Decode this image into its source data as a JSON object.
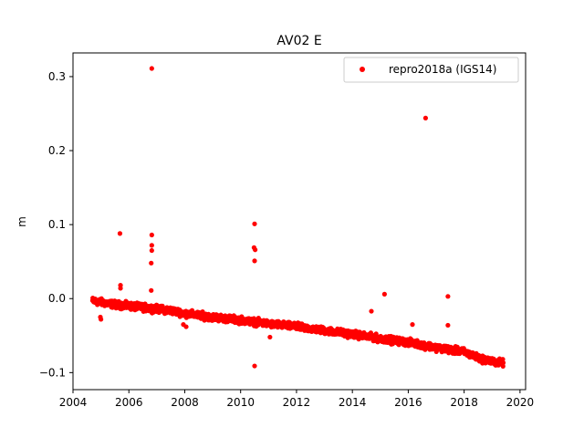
{
  "chart_data": {
    "type": "scatter",
    "title": "AV02 E",
    "xlabel": "",
    "ylabel": "m",
    "xlim": [
      2004.0,
      2020.2
    ],
    "ylim": [
      -0.123,
      0.332
    ],
    "xticks": [
      2004,
      2006,
      2008,
      2010,
      2012,
      2014,
      2016,
      2018,
      2020
    ],
    "xtick_labels": [
      "2004",
      "2006",
      "2008",
      "2010",
      "2012",
      "2014",
      "2016",
      "2018",
      "2020"
    ],
    "yticks": [
      -0.1,
      0.0,
      0.1,
      0.2,
      0.3
    ],
    "ytick_labels": [
      "−0.1",
      "0.0",
      "0.1",
      "0.2",
      "0.3"
    ],
    "legend_position": "top-right",
    "series": [
      {
        "name": "repro2018a (IGS14)",
        "color": "#ff0000",
        "marker": "circle",
        "trend": {
          "x": [
            2004.7,
            2005.5,
            2006.0,
            2006.8,
            2007.5,
            2008.0,
            2009.0,
            2010.0,
            2011.0,
            2012.0,
            2013.0,
            2014.0,
            2015.0,
            2016.0,
            2017.0,
            2018.0,
            2018.5,
            2019.0,
            2019.4
          ],
          "y": [
            -0.003,
            -0.008,
            -0.01,
            -0.013,
            -0.016,
            -0.02,
            -0.025,
            -0.029,
            -0.034,
            -0.038,
            -0.043,
            -0.048,
            -0.054,
            -0.059,
            -0.066,
            -0.072,
            -0.08,
            -0.085,
            -0.087
          ]
        },
        "outliers": {
          "x": [
            2006.82,
            2016.62,
            2005.68,
            2006.82,
            2006.82,
            2006.82,
            2006.8,
            2005.7,
            2005.7,
            2006.8,
            2010.5,
            2010.48,
            2010.52,
            2010.5,
            2010.5,
            2011.05,
            2015.15,
            2014.68,
            2016.15,
            2017.42,
            2017.42,
            2007.95,
            2008.05,
            2005.0,
            2004.98
          ],
          "y": [
            0.311,
            0.244,
            0.088,
            0.086,
            0.072,
            0.065,
            0.048,
            0.018,
            0.014,
            0.011,
            0.101,
            0.069,
            0.066,
            0.051,
            -0.091,
            -0.052,
            0.006,
            -0.017,
            -0.035,
            0.003,
            -0.036,
            -0.035,
            -0.038,
            -0.028,
            -0.025
          ]
        }
      }
    ]
  }
}
